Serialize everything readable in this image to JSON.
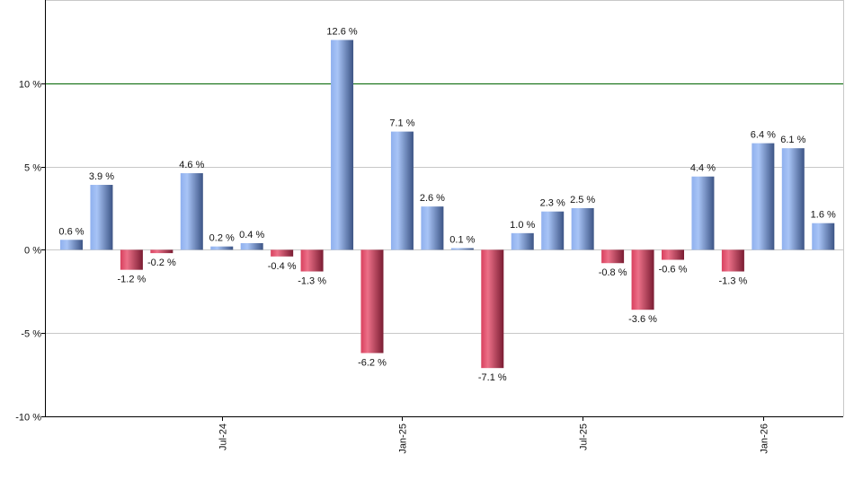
{
  "chart_data": {
    "type": "bar",
    "title": "",
    "xlabel": "",
    "ylabel": "",
    "ylim": [
      -10,
      15
    ],
    "y_ticks": [
      {
        "value": 10,
        "label": "10 %"
      },
      {
        "value": 5,
        "label": "5 %"
      },
      {
        "value": 0,
        "label": "0 %"
      },
      {
        "value": -5,
        "label": "-5 %"
      },
      {
        "value": -10,
        "label": "-10 %"
      }
    ],
    "x_ticks": [
      {
        "bar_index": 5,
        "label": "Jul-24"
      },
      {
        "bar_index": 11,
        "label": "Jan-25"
      },
      {
        "bar_index": 17,
        "label": "Jul-25"
      },
      {
        "bar_index": 23,
        "label": "Jan-26"
      }
    ],
    "values": [
      0.6,
      3.9,
      -1.2,
      -0.2,
      4.6,
      0.2,
      0.4,
      -0.4,
      -1.3,
      12.6,
      -6.2,
      7.1,
      2.6,
      0.1,
      -7.1,
      1.0,
      2.3,
      2.5,
      -0.8,
      -3.6,
      -0.6,
      4.4,
      -1.3,
      6.4,
      6.1,
      1.6
    ],
    "value_suffix": " %",
    "grid": true,
    "reference_line": {
      "value": 10,
      "color": "#006400"
    },
    "colors": {
      "positive": "#6f93d8",
      "negative": "#c8304e"
    }
  }
}
